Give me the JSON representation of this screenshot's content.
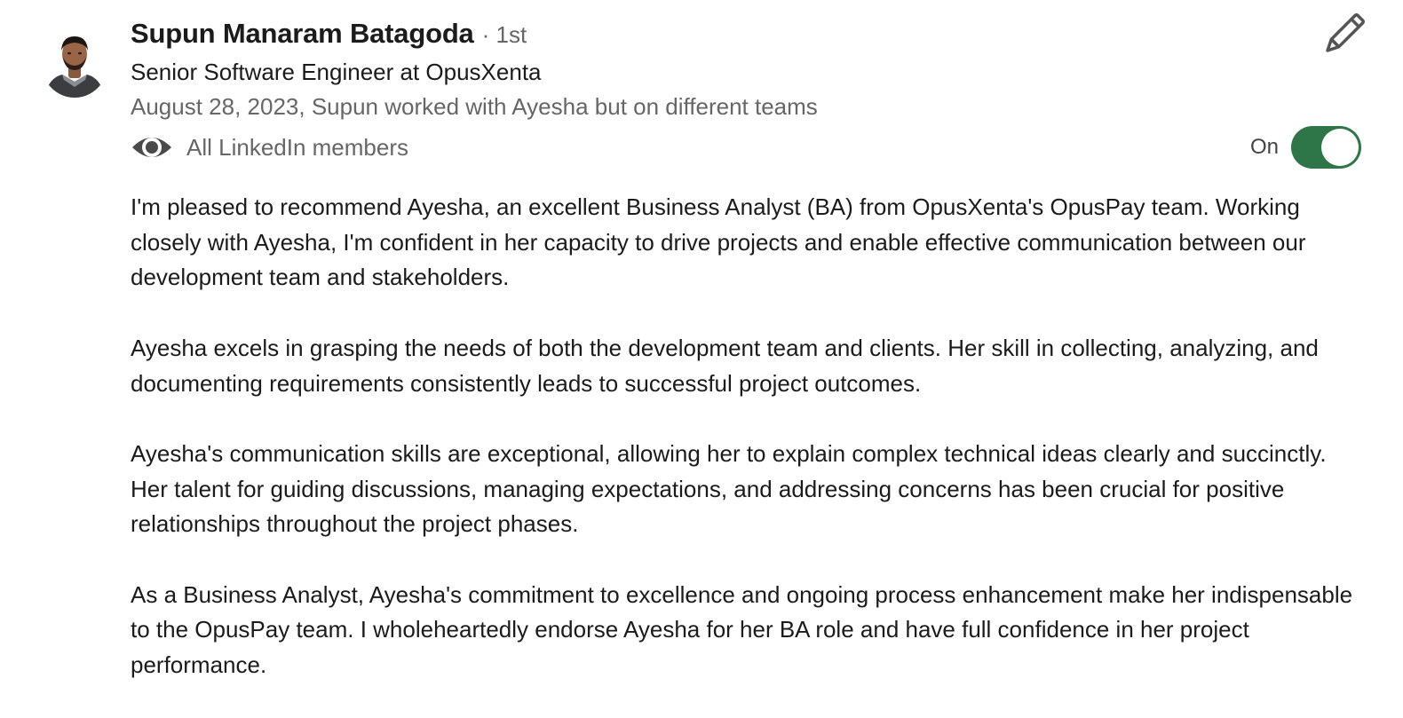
{
  "author": {
    "name": "Supun Manaram Batagoda",
    "degree": "· 1st",
    "headline": "Senior Software Engineer at OpusXenta",
    "relationship": "August 28, 2023, Supun worked with Ayesha but on different teams"
  },
  "visibility": {
    "icon": "eye-icon",
    "label": "All LinkedIn members"
  },
  "toggle": {
    "label": "On",
    "state": true,
    "color": "#2e7548"
  },
  "edit": {
    "icon": "pencil-icon"
  },
  "recommendation": {
    "paragraphs": [
      "I'm pleased to recommend Ayesha, an excellent Business Analyst (BA) from OpusXenta's OpusPay team. Working closely with Ayesha, I'm confident in her capacity to drive projects and enable effective communication between our development team and stakeholders.",
      "Ayesha excels in grasping the needs of both the development team and clients. Her skill in collecting, analyzing, and documenting requirements consistently leads to successful project outcomes.",
      "Ayesha's communication skills are exceptional, allowing her to explain complex technical ideas clearly and succinctly. Her talent for guiding discussions, managing expectations, and addressing concerns has been crucial for positive relationships throughout the project phases.",
      "As a Business Analyst, Ayesha's commitment to excellence and ongoing process enhancement make her indispensable to the OpusPay team. I wholeheartedly endorse Ayesha for her BA role and have full confidence in her project performance."
    ]
  }
}
